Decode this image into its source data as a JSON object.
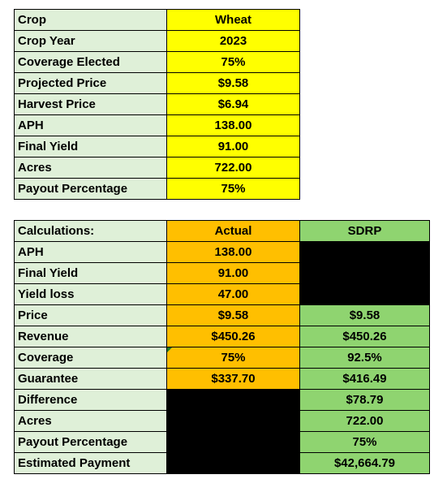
{
  "inputs": {
    "rows": [
      {
        "label": "Crop",
        "value": "Wheat"
      },
      {
        "label": "Crop Year",
        "value": "2023"
      },
      {
        "label": "Coverage Elected",
        "value": "75%"
      },
      {
        "label": "Projected Price",
        "value": "$9.58"
      },
      {
        "label": "Harvest Price",
        "value": "$6.94"
      },
      {
        "label": "APH",
        "value": "138.00"
      },
      {
        "label": "Final Yield",
        "value": "91.00"
      },
      {
        "label": "Acres",
        "value": "722.00"
      },
      {
        "label": "Payout Percentage",
        "value": "75%"
      }
    ]
  },
  "calc": {
    "header": {
      "label": "Calculations:",
      "actual": "Actual",
      "sdrp": "SDRP"
    },
    "rows": [
      {
        "label": "APH",
        "actual": "138.00",
        "sdrp": ""
      },
      {
        "label": "Final Yield",
        "actual": "91.00",
        "sdrp": ""
      },
      {
        "label": "Yield loss",
        "actual": "47.00",
        "sdrp": ""
      },
      {
        "label": "Price",
        "actual": "$9.58",
        "sdrp": "$9.58"
      },
      {
        "label": "Revenue",
        "actual": "$450.26",
        "sdrp": "$450.26"
      },
      {
        "label": "Coverage",
        "actual": "75%",
        "sdrp": "92.5%"
      },
      {
        "label": "Guarantee",
        "actual": "$337.70",
        "sdrp": "$416.49"
      },
      {
        "label": "Difference",
        "actual": "",
        "sdrp": "$78.79"
      },
      {
        "label": "Acres",
        "actual": "",
        "sdrp": "722.00"
      },
      {
        "label": "Payout Percentage",
        "actual": "",
        "sdrp": "75%"
      },
      {
        "label": "Estimated Payment",
        "actual": "",
        "sdrp": "$42,664.79"
      }
    ]
  },
  "colors": {
    "label_bg": "#dff0d8",
    "input_bg": "#ffff00",
    "actual_bg": "#ffbf00",
    "sdrp_bg": "#8fd470",
    "blank_bg": "#000000"
  }
}
